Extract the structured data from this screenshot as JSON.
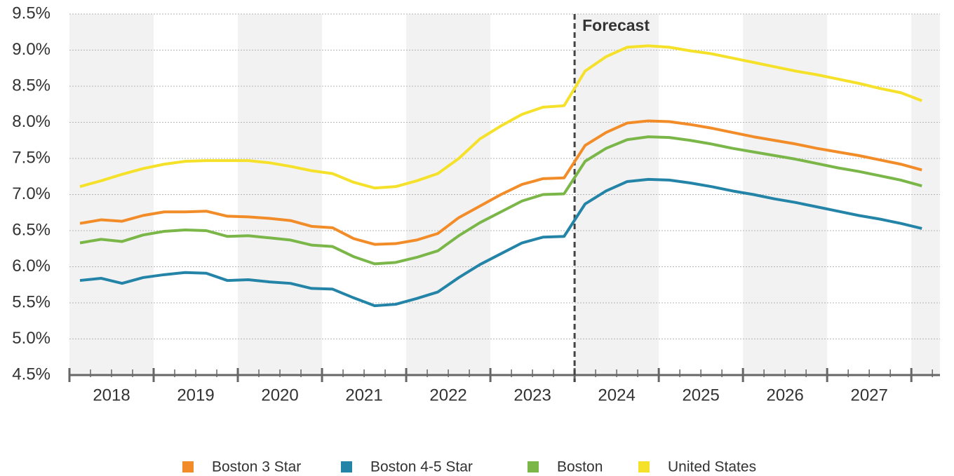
{
  "chart_data": {
    "type": "line",
    "x": [
      2018.125,
      2018.375,
      2018.625,
      2018.875,
      2019.125,
      2019.375,
      2019.625,
      2019.875,
      2020.125,
      2020.375,
      2020.625,
      2020.875,
      2021.125,
      2021.375,
      2021.625,
      2021.875,
      2022.125,
      2022.375,
      2022.625,
      2022.875,
      2023.125,
      2023.375,
      2023.625,
      2023.875,
      2024.125,
      2024.375,
      2024.625,
      2024.875,
      2025.125,
      2025.375,
      2025.625,
      2025.875,
      2026.125,
      2026.375,
      2026.625,
      2026.875,
      2027.125,
      2027.375,
      2027.625,
      2027.875,
      2028.125
    ],
    "series": [
      {
        "name": "Boston 3 Star",
        "color": "#f28c28",
        "values": [
          6.6,
          6.65,
          6.63,
          6.71,
          6.76,
          6.76,
          6.77,
          6.7,
          6.69,
          6.67,
          6.64,
          6.56,
          6.54,
          6.39,
          6.31,
          6.32,
          6.37,
          6.46,
          6.68,
          6.84,
          7.0,
          7.14,
          7.22,
          7.23,
          7.68,
          7.86,
          7.99,
          8.02,
          8.01,
          7.97,
          7.92,
          7.86,
          7.8,
          7.75,
          7.7,
          7.64,
          7.59,
          7.54,
          7.48,
          7.42,
          7.34
        ]
      },
      {
        "name": "Boston 4-5 Star",
        "color": "#2384a8",
        "values": [
          5.81,
          5.84,
          5.77,
          5.85,
          5.89,
          5.92,
          5.91,
          5.81,
          5.82,
          5.79,
          5.77,
          5.7,
          5.69,
          5.57,
          5.46,
          5.48,
          5.56,
          5.65,
          5.85,
          6.03,
          6.18,
          6.33,
          6.41,
          6.42,
          6.87,
          7.05,
          7.18,
          7.21,
          7.2,
          7.16,
          7.11,
          7.05,
          7.0,
          6.94,
          6.89,
          6.83,
          6.77,
          6.71,
          6.66,
          6.6,
          6.53
        ]
      },
      {
        "name": "Boston",
        "color": "#7ab648",
        "values": [
          6.33,
          6.38,
          6.35,
          6.44,
          6.49,
          6.51,
          6.5,
          6.42,
          6.43,
          6.4,
          6.37,
          6.3,
          6.28,
          6.14,
          6.04,
          6.06,
          6.13,
          6.22,
          6.43,
          6.61,
          6.76,
          6.91,
          7.0,
          7.01,
          7.46,
          7.64,
          7.76,
          7.8,
          7.79,
          7.75,
          7.7,
          7.64,
          7.59,
          7.54,
          7.49,
          7.43,
          7.37,
          7.32,
          7.26,
          7.2,
          7.12
        ]
      },
      {
        "name": "United States",
        "color": "#f5e12a",
        "values": [
          7.11,
          7.19,
          7.28,
          7.36,
          7.42,
          7.46,
          7.47,
          7.47,
          7.47,
          7.44,
          7.39,
          7.33,
          7.29,
          7.17,
          7.09,
          7.11,
          7.19,
          7.29,
          7.5,
          7.77,
          7.95,
          8.11,
          8.21,
          8.23,
          8.71,
          8.91,
          9.04,
          9.06,
          9.04,
          8.99,
          8.95,
          8.89,
          8.83,
          8.77,
          8.71,
          8.66,
          8.6,
          8.54,
          8.47,
          8.41,
          8.3
        ]
      }
    ],
    "xlim": [
      2018,
      2028.34
    ],
    "xticks": [
      {
        "value": 2018.5,
        "label": "2018"
      },
      {
        "value": 2019.5,
        "label": "2019"
      },
      {
        "value": 2020.5,
        "label": "2020"
      },
      {
        "value": 2021.5,
        "label": "2021"
      },
      {
        "value": 2022.5,
        "label": "2022"
      },
      {
        "value": 2023.5,
        "label": "2023"
      },
      {
        "value": 2024.5,
        "label": "2024"
      },
      {
        "value": 2025.5,
        "label": "2025"
      },
      {
        "value": 2026.5,
        "label": "2026"
      },
      {
        "value": 2027.5,
        "label": "2027"
      }
    ],
    "ylim": [
      4.5,
      9.5
    ],
    "yticks": [
      {
        "value": 4.5,
        "label": "4.5%"
      },
      {
        "value": 5.0,
        "label": "5.0%"
      },
      {
        "value": 5.5,
        "label": "5.5%"
      },
      {
        "value": 6.0,
        "label": "6.0%"
      },
      {
        "value": 6.5,
        "label": "6.5%"
      },
      {
        "value": 7.0,
        "label": "7.0%"
      },
      {
        "value": 7.5,
        "label": "7.5%"
      },
      {
        "value": 8.0,
        "label": "8.0%"
      },
      {
        "value": 8.5,
        "label": "8.5%"
      },
      {
        "value": 9.0,
        "label": "9.0%"
      },
      {
        "value": 9.5,
        "label": "9.5%"
      }
    ],
    "grid": true,
    "forecast": {
      "x": 2024,
      "label": "Forecast"
    },
    "legend": "bottom"
  }
}
